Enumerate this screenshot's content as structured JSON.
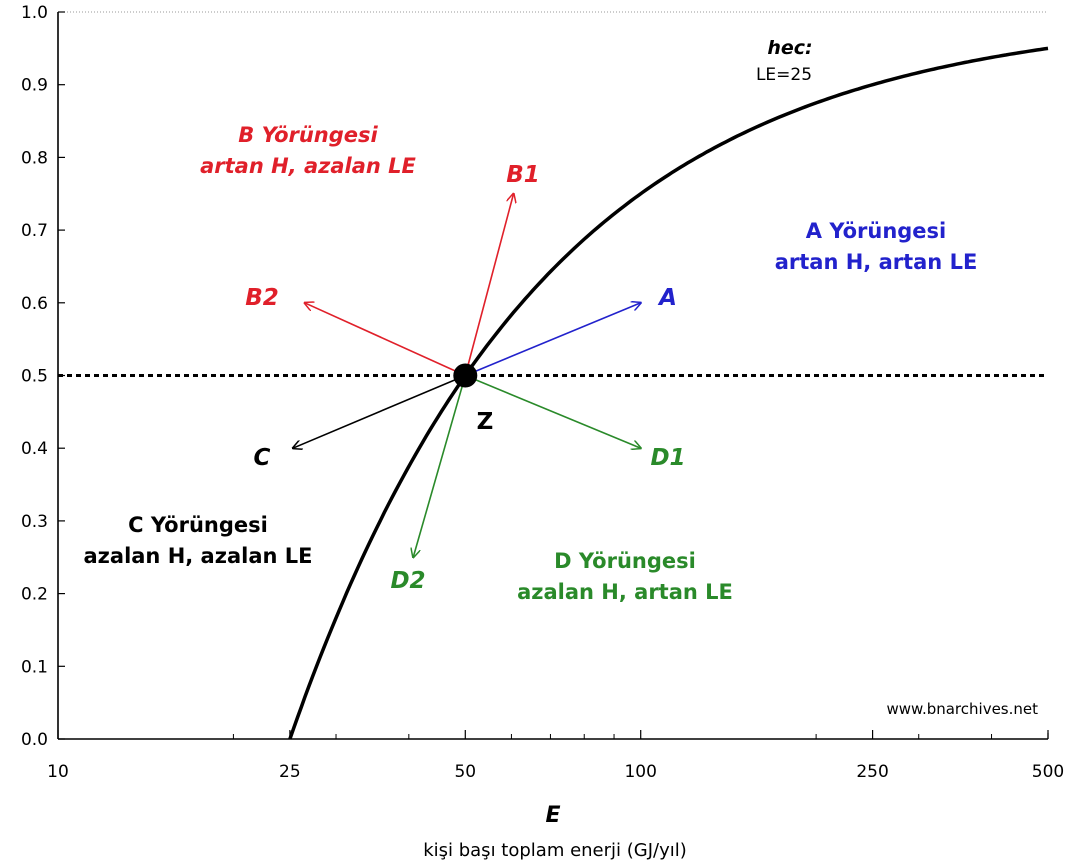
{
  "chart_data": {
    "type": "line",
    "xscale": "log",
    "xlim": [
      10,
      500
    ],
    "ylim": [
      0.0,
      1.0
    ],
    "xticks": [
      10,
      25,
      50,
      100,
      250,
      500
    ],
    "xtick_labels": [
      "10",
      "25",
      "50",
      "100",
      "250",
      "500"
    ],
    "yticks": [
      0.0,
      0.1,
      0.2,
      0.3,
      0.4,
      0.5,
      0.6,
      0.7,
      0.8,
      0.9,
      1.0
    ],
    "ytick_labels": [
      "0.0",
      "0.1",
      "0.2",
      "0.3",
      "0.4",
      "0.5",
      "0.6",
      "0.7",
      "0.8",
      "0.9",
      "1.0"
    ],
    "xlabel": "E",
    "xlabel_sub": "kişi başı toplam enerji (GJ/yıl)",
    "ylabel": "",
    "grid": false,
    "curve": {
      "label": "hec:",
      "sublabel": "LE=25",
      "formula": "H = 1 - 25/E",
      "x": [
        25,
        27,
        30,
        35,
        40,
        50,
        60,
        75,
        100,
        125,
        150,
        200,
        250,
        300,
        400,
        500
      ],
      "y": [
        0.0,
        0.074,
        0.167,
        0.286,
        0.375,
        0.5,
        0.583,
        0.667,
        0.75,
        0.8,
        0.833,
        0.875,
        0.9,
        0.917,
        0.938,
        0.95
      ]
    },
    "reference_line": {
      "y": 0.5,
      "style": "dashed"
    },
    "point": {
      "label": "Z",
      "x": 50,
      "y": 0.5
    },
    "arrows": [
      {
        "label": "B1",
        "color": "#e0202a",
        "to_x": 60.5,
        "to_y": 0.75
      },
      {
        "label": "A",
        "color": "#2222cc",
        "to_x": 100,
        "to_y": 0.6
      },
      {
        "label": "B2",
        "color": "#e0202a",
        "to_x": 26.5,
        "to_y": 0.6
      },
      {
        "label": "C",
        "color": "#000000",
        "to_x": 25.3,
        "to_y": 0.4
      },
      {
        "label": "D1",
        "color": "#2a8a2a",
        "to_x": 100,
        "to_y": 0.4
      },
      {
        "label": "D2",
        "color": "#2a8a2a",
        "to_x": 40.7,
        "to_y": 0.25
      }
    ],
    "regions": [
      {
        "line1": "B Yörüngesi",
        "line2": "artan H, azalan LE",
        "color": "#e0202a",
        "italic": true
      },
      {
        "line1": "A Yörüngesi",
        "line2": "artan H, artan LE",
        "color": "#2222cc",
        "italic": false
      },
      {
        "line1": "C Yörüngesi",
        "line2": "azalan H, azalan LE",
        "color": "#000000",
        "italic": false
      },
      {
        "line1": "D Yörüngesi",
        "line2": "azalan H, artan LE",
        "color": "#2a8a2a",
        "italic": false
      }
    ],
    "watermark": "www.bnarchives.net"
  }
}
